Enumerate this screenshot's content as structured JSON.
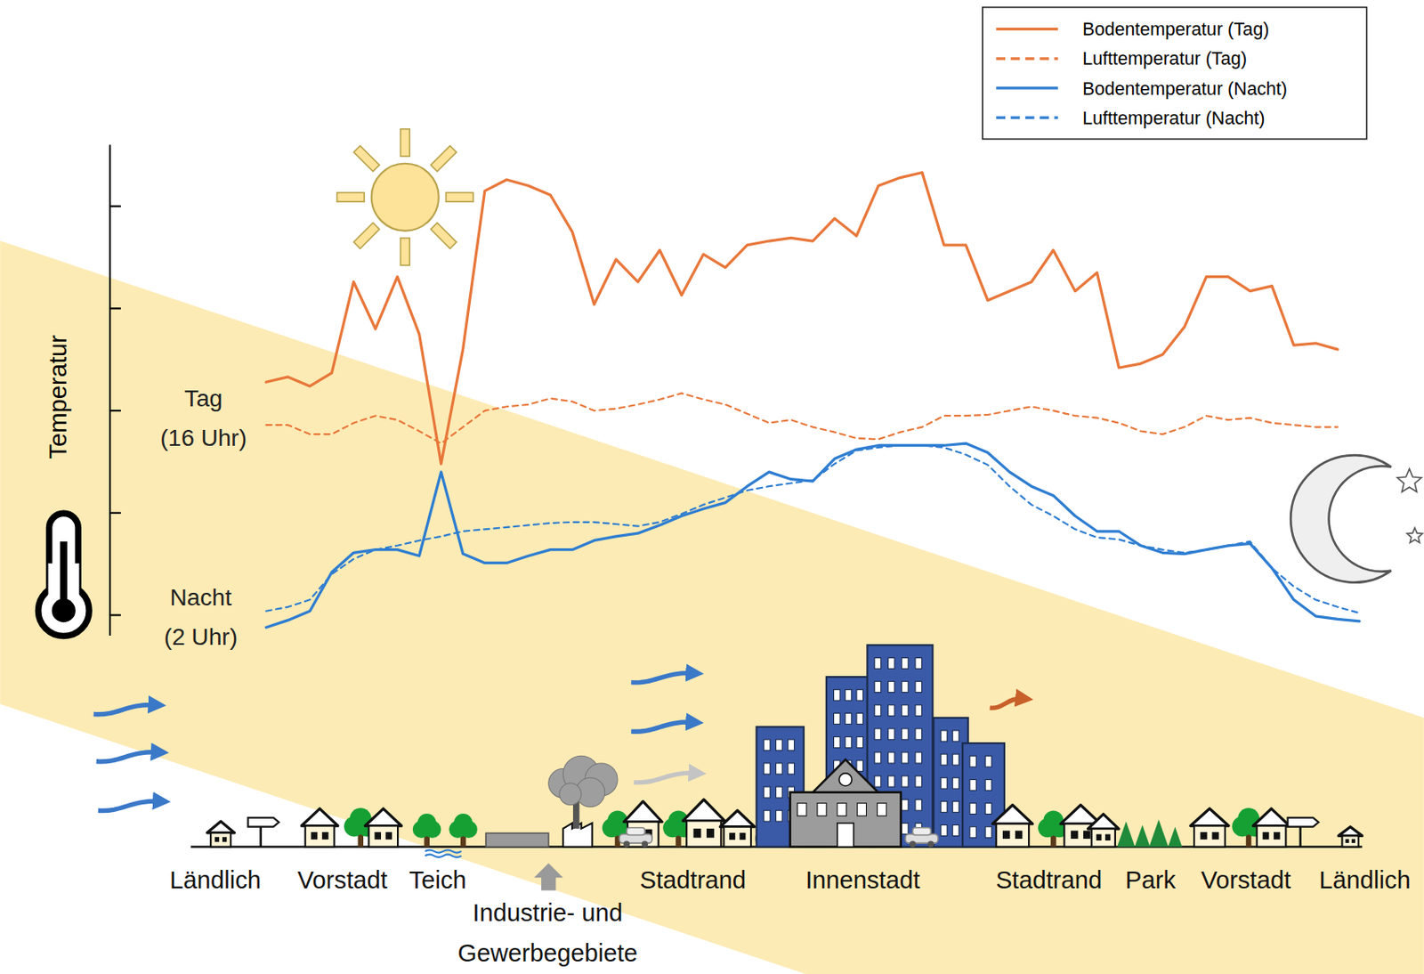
{
  "chart_data": {
    "type": "line",
    "y_label": "Temperatur",
    "x": [
      0,
      2,
      4,
      6,
      8,
      10,
      12,
      14,
      16,
      18,
      20,
      22,
      24,
      26,
      28,
      30,
      32,
      34,
      36,
      38,
      40,
      42,
      44,
      46,
      48,
      50,
      52,
      54,
      56,
      58,
      60,
      62,
      64,
      66,
      68,
      70,
      72,
      74,
      76,
      78,
      80,
      82,
      84,
      86,
      88,
      90,
      92,
      94,
      96,
      98,
      100
    ],
    "xlim": [
      0,
      100
    ],
    "ylim": [
      -0.2,
      4.6
    ],
    "yticks": [
      0,
      1,
      2,
      3,
      4
    ],
    "tick_labels": false,
    "legend": "top right",
    "series": [
      {
        "name": "Bodentemperatur (Tag)",
        "color": "#e8773a",
        "line_style": "solid",
        "values": [
          2.28,
          2.33,
          2.24,
          2.37,
          3.26,
          2.8,
          3.31,
          2.75,
          1.48,
          2.6,
          4.15,
          4.26,
          4.2,
          4.11,
          3.75,
          3.04,
          3.48,
          3.26,
          3.57,
          3.13,
          3.53,
          3.4,
          3.62,
          3.66,
          3.69,
          3.66,
          3.88,
          3.71,
          4.2,
          4.28,
          4.33,
          3.62,
          3.62,
          3.08,
          3.17,
          3.26,
          3.57,
          3.17,
          3.35,
          2.42,
          2.46,
          2.55,
          2.82,
          3.31,
          3.31,
          3.17,
          3.22,
          2.64,
          2.66,
          2.6,
          null
        ]
      },
      {
        "name": "Lufttemperatur (Tag)",
        "color": "#e8773a",
        "line_style": "dashed",
        "values": [
          1.86,
          1.86,
          1.77,
          1.77,
          1.88,
          1.95,
          1.91,
          1.8,
          1.68,
          1.84,
          2.0,
          2.04,
          2.06,
          2.12,
          2.09,
          2.0,
          2.02,
          2.06,
          2.11,
          2.17,
          2.11,
          2.06,
          1.97,
          1.88,
          1.91,
          1.84,
          1.79,
          1.73,
          1.72,
          1.79,
          1.84,
          1.95,
          1.95,
          1.96,
          2.0,
          2.04,
          2.0,
          1.95,
          1.93,
          1.88,
          1.8,
          1.77,
          1.84,
          1.95,
          1.91,
          1.93,
          1.88,
          1.86,
          1.84,
          1.84,
          null
        ]
      },
      {
        "name": "Bodentemperatur (Nacht)",
        "color": "#2e7dd1",
        "line_style": "solid",
        "values": [
          -0.12,
          -0.05,
          0.04,
          0.42,
          0.61,
          0.64,
          0.64,
          0.58,
          1.4,
          0.6,
          0.51,
          0.51,
          0.58,
          0.64,
          0.64,
          0.73,
          0.77,
          0.8,
          0.88,
          0.97,
          1.04,
          1.1,
          1.26,
          1.4,
          1.33,
          1.31,
          1.53,
          1.62,
          1.66,
          1.66,
          1.66,
          1.66,
          1.68,
          1.59,
          1.4,
          1.26,
          1.17,
          0.97,
          0.82,
          0.82,
          0.68,
          0.61,
          0.6,
          0.64,
          0.68,
          0.7,
          0.46,
          0.15,
          -0.01,
          -0.04,
          -0.06
        ]
      },
      {
        "name": "Lufttemperatur (Nacht)",
        "color": "#2e7dd1",
        "line_style": "dashed",
        "values": [
          0.04,
          0.08,
          0.15,
          0.4,
          0.55,
          0.64,
          0.68,
          0.73,
          0.77,
          0.82,
          0.84,
          0.86,
          0.88,
          0.9,
          0.91,
          0.91,
          0.89,
          0.87,
          0.91,
          0.99,
          1.08,
          1.15,
          1.22,
          1.26,
          1.29,
          1.32,
          1.48,
          1.61,
          1.64,
          1.66,
          1.66,
          1.64,
          1.57,
          1.47,
          1.26,
          1.08,
          0.97,
          0.84,
          0.76,
          0.74,
          0.68,
          0.64,
          0.61,
          0.64,
          0.68,
          0.72,
          0.46,
          0.28,
          0.15,
          0.08,
          0.02
        ]
      }
    ],
    "annotations": {
      "day_label": [
        "Tag",
        "(16 Uhr)"
      ],
      "night_label": [
        "Nacht",
        "(2 Uhr)"
      ]
    },
    "transect_labels": [
      "Ländlich",
      "Vorstadt",
      "Teich",
      "Stadtrand",
      "Innenstadt",
      "Stadtrand",
      "Park",
      "Vorstadt",
      "Ländlich"
    ],
    "industry_label": [
      "Industrie- und",
      "Gewerbegebiete"
    ]
  }
}
